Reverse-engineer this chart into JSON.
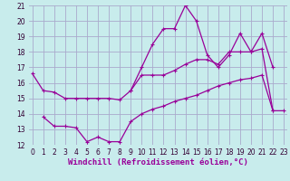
{
  "background_color": "#c8ecec",
  "grid_color": "#aaaacc",
  "line_color": "#990099",
  "xlabel": "Windchill (Refroidissement éolien,°C)",
  "x_values": [
    0,
    1,
    2,
    3,
    4,
    5,
    6,
    7,
    8,
    9,
    10,
    11,
    12,
    13,
    14,
    15,
    16,
    17,
    18,
    19,
    20,
    21,
    22,
    23
  ],
  "series1_x": [
    0,
    1,
    2,
    3,
    4,
    5,
    6,
    7,
    8,
    9,
    10,
    11,
    12,
    13,
    14,
    15,
    16,
    17,
    18,
    19,
    20,
    21,
    22,
    23
  ],
  "series1_y": [
    16.6,
    15.5,
    15.4,
    15.0,
    15.0,
    15.0,
    15.0,
    15.0,
    14.9,
    15.5,
    16.5,
    16.5,
    16.5,
    16.8,
    17.2,
    17.5,
    17.5,
    17.2,
    18.0,
    18.0,
    18.0,
    18.2,
    14.2,
    14.2
  ],
  "series2_x": [
    1,
    2,
    3,
    4,
    5,
    6,
    7,
    8,
    9,
    10,
    11,
    12,
    13,
    14,
    15,
    16,
    17,
    18,
    19,
    20,
    21,
    22
  ],
  "series2_y": [
    13.8,
    13.2,
    13.2,
    13.1,
    12.2,
    12.5,
    12.2,
    12.2,
    13.5,
    14.0,
    14.3,
    14.5,
    14.8,
    15.0,
    15.2,
    15.5,
    15.8,
    16.0,
    16.2,
    16.3,
    16.5,
    14.2
  ],
  "series3_x": [
    9,
    10,
    11,
    12,
    13,
    14,
    15,
    16,
    17,
    18,
    19,
    20,
    21,
    22
  ],
  "series3_y": [
    15.5,
    17.0,
    18.5,
    19.5,
    19.5,
    21.0,
    20.0,
    17.8,
    17.0,
    17.8,
    19.2,
    18.0,
    19.2,
    17.0
  ],
  "xlim": [
    0,
    23
  ],
  "ylim": [
    12,
    21
  ],
  "yticks": [
    12,
    13,
    14,
    15,
    16,
    17,
    18,
    19,
    20,
    21
  ],
  "xticks": [
    0,
    1,
    2,
    3,
    4,
    5,
    6,
    7,
    8,
    9,
    10,
    11,
    12,
    13,
    14,
    15,
    16,
    17,
    18,
    19,
    20,
    21,
    22,
    23
  ],
  "fontsize_ticks": 5.5,
  "fontsize_xlabel": 6.5
}
